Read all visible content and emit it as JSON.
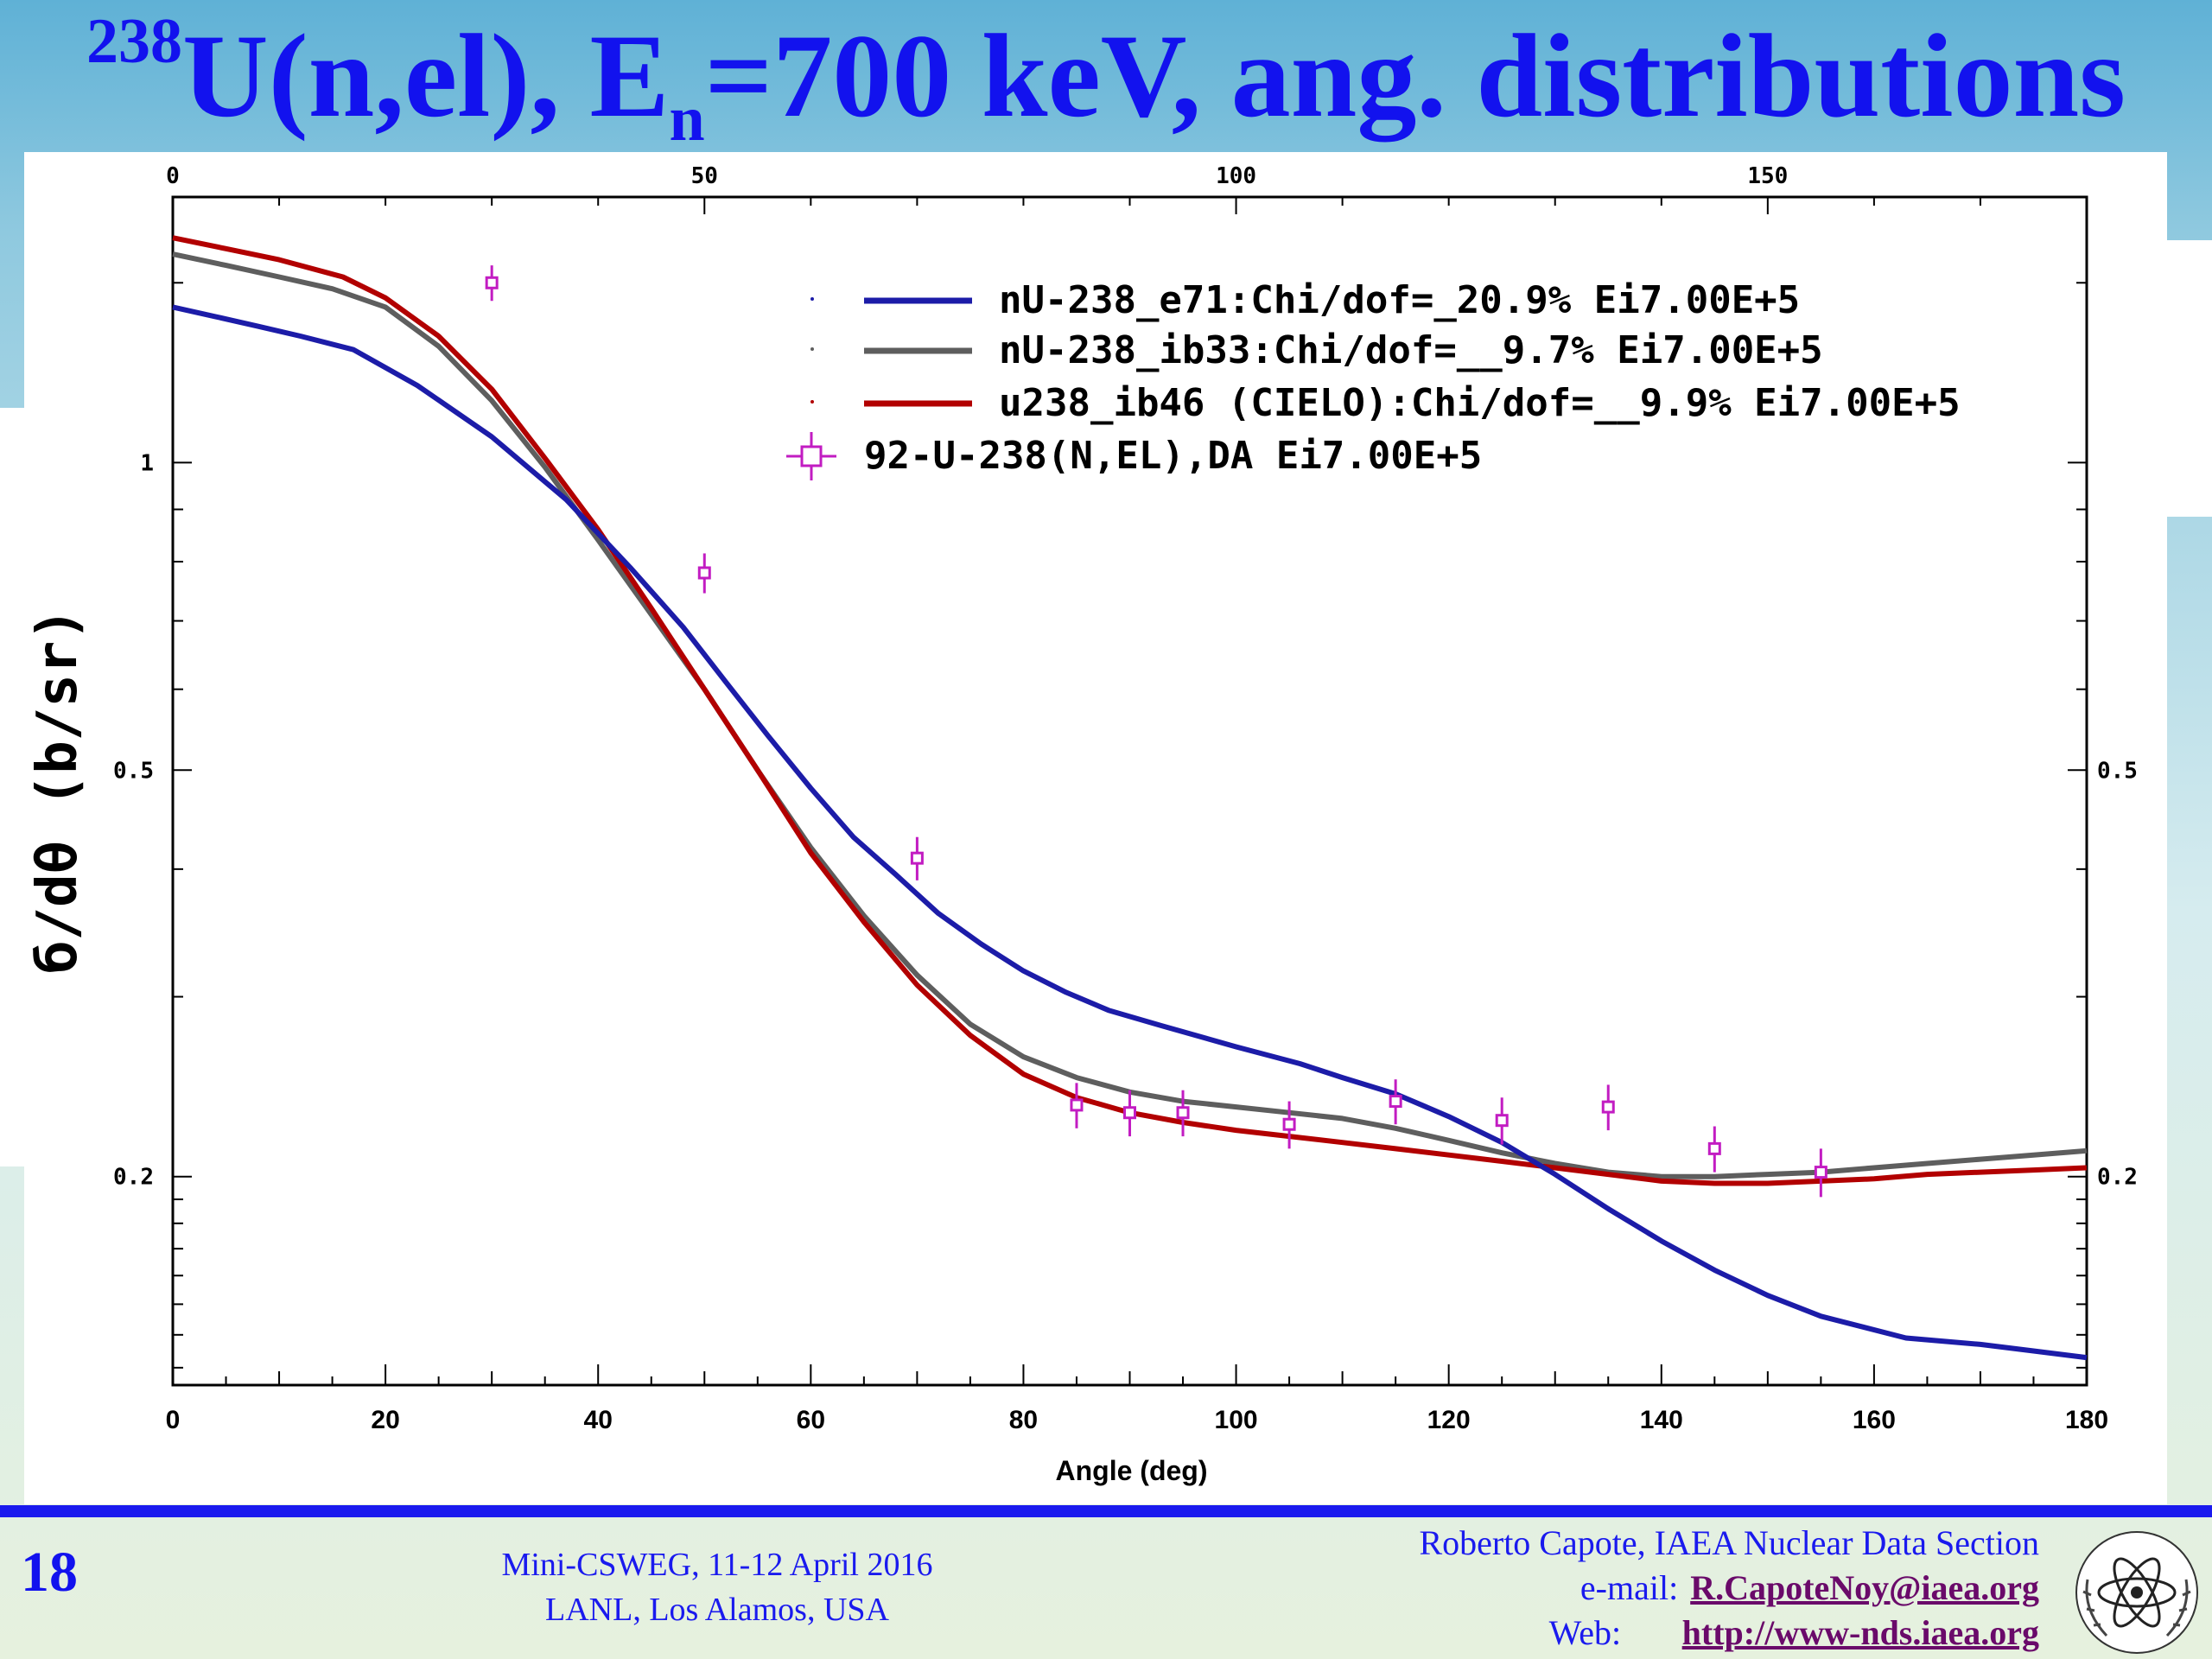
{
  "slide": {
    "title": {
      "superscript": "238",
      "main": "U(n,el), E",
      "subscript": "n",
      "tail": "=700 keV, ang. distributions"
    },
    "page_number": "18",
    "footer_center": [
      "Mini-CSWEG, 11-12 April 2016",
      "LANL, Los Alamos, USA"
    ],
    "footer_right": {
      "author": "Roberto Capote, IAEA Nuclear Data Section",
      "email_label": "e-mail:",
      "email": "R.CapoteNoy@iaea.org",
      "web_label": "Web:",
      "web": "http://www-nds.iaea.org"
    },
    "logo_icon": "iaea-atom-logo-icon",
    "colors": {
      "title": "#1212ee",
      "footer_text": "#1a1aee",
      "link": "#6a0a6a",
      "rule": "#1a1aee"
    }
  },
  "chart_data": {
    "type": "line",
    "xlabel": "Angle (deg)",
    "ylabel": "б/dθ (b/sr)",
    "xlim": [
      0,
      180
    ],
    "ylim": [
      0.125,
      1.82
    ],
    "yscale": "log",
    "x_ticks": [
      "0",
      "20",
      "40",
      "60",
      "80",
      "100",
      "120",
      "140",
      "160",
      "180"
    ],
    "top_x_ticks": [
      "0",
      "50",
      "100",
      "150"
    ],
    "y_ticks": [
      "1",
      "0.5",
      "0.2"
    ],
    "right_y_ticks": [
      "0.5",
      "0.2"
    ],
    "grid": false,
    "legend_position": "top-right",
    "series": [
      {
        "name": "nU-238_e71:Chi/dof=_20.9% Ei7.00E+5",
        "color": "#1c1ca8",
        "x": [
          0,
          4,
          8,
          12,
          17,
          23,
          30,
          37,
          43,
          48,
          52,
          56,
          60,
          64,
          68,
          72,
          76,
          80,
          84,
          88,
          93,
          100,
          106,
          110,
          115,
          120,
          125,
          130,
          135,
          140,
          145,
          150,
          155,
          163,
          170,
          175,
          180
        ],
        "y": [
          1.42,
          1.39,
          1.36,
          1.33,
          1.29,
          1.19,
          1.06,
          0.92,
          0.79,
          0.69,
          0.61,
          0.54,
          0.48,
          0.43,
          0.395,
          0.362,
          0.338,
          0.318,
          0.303,
          0.291,
          0.281,
          0.268,
          0.258,
          0.25,
          0.241,
          0.229,
          0.216,
          0.201,
          0.186,
          0.173,
          0.162,
          0.153,
          0.146,
          0.139,
          0.137,
          0.135,
          0.133
        ]
      },
      {
        "name": "nU-238_ib33:Chi/dof=__9.7% Ei7.00E+5",
        "color": "#5e5e5e",
        "x": [
          0,
          5,
          10,
          15,
          20,
          25,
          30,
          35,
          40,
          45,
          50,
          55,
          60,
          65,
          70,
          75,
          80,
          85,
          90,
          95,
          100,
          105,
          110,
          115,
          120,
          125,
          130,
          135,
          140,
          145,
          150,
          155,
          160,
          165,
          170,
          175,
          180
        ],
        "y": [
          1.6,
          1.56,
          1.52,
          1.48,
          1.42,
          1.3,
          1.15,
          0.99,
          0.84,
          0.71,
          0.6,
          0.5,
          0.42,
          0.36,
          0.315,
          0.282,
          0.262,
          0.25,
          0.242,
          0.237,
          0.234,
          0.231,
          0.228,
          0.223,
          0.217,
          0.211,
          0.206,
          0.202,
          0.2,
          0.2,
          0.201,
          0.202,
          0.204,
          0.206,
          0.208,
          0.21,
          0.212
        ]
      },
      {
        "name": "u238_ib46 (CIELO):Chi/dof=__9.9% Ei7.00E+5",
        "color": "#b20000",
        "x": [
          0,
          5,
          10,
          16,
          20,
          25,
          30,
          35,
          40,
          45,
          50,
          55,
          60,
          65,
          70,
          75,
          80,
          85,
          90,
          95,
          100,
          105,
          110,
          115,
          120,
          125,
          130,
          135,
          140,
          145,
          150,
          155,
          160,
          165,
          170,
          175,
          180
        ],
        "y": [
          1.66,
          1.62,
          1.58,
          1.52,
          1.45,
          1.33,
          1.18,
          1.01,
          0.86,
          0.72,
          0.6,
          0.5,
          0.415,
          0.355,
          0.308,
          0.275,
          0.252,
          0.239,
          0.231,
          0.226,
          0.222,
          0.219,
          0.216,
          0.213,
          0.21,
          0.207,
          0.204,
          0.201,
          0.198,
          0.197,
          0.197,
          0.198,
          0.199,
          0.201,
          0.202,
          0.203,
          0.204
        ]
      },
      {
        "name": "92-U-238(N,EL),DA Ei7.00E+5",
        "color": "#c21cc2",
        "kind": "scatter",
        "x": [
          30,
          50,
          70,
          85,
          90,
          95,
          105,
          115,
          125,
          135,
          145,
          155
        ],
        "y": [
          1.5,
          0.78,
          0.41,
          0.235,
          0.231,
          0.231,
          0.225,
          0.237,
          0.227,
          0.234,
          0.213,
          0.202
        ],
        "yerr": [
          0.06,
          0.035,
          0.02,
          0.012,
          0.012,
          0.012,
          0.012,
          0.012,
          0.012,
          0.012,
          0.011,
          0.011
        ]
      }
    ]
  }
}
